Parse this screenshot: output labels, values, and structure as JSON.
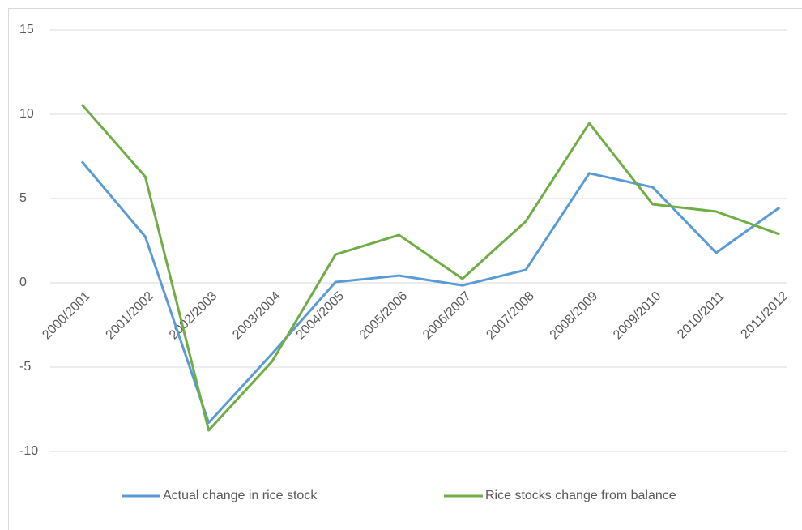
{
  "chart_data": {
    "type": "line",
    "categories": [
      "2000/2001",
      "2001/2002",
      "2002/2003",
      "2003/2004",
      "2004/2005",
      "2005/2006",
      "2006/2007",
      "2007/2008",
      "2008/2009",
      "2009/2010",
      "2010/2011",
      "2011/2012"
    ],
    "series": [
      {
        "name": "Actual change in rice stock",
        "color": "#5b9bd5",
        "values": [
          7.2,
          2.74,
          -8.3,
          -4.2,
          0.05,
          0.43,
          -0.15,
          0.77,
          6.5,
          5.67,
          1.78,
          4.47
        ]
      },
      {
        "name": "Rice stocks change from balance",
        "color": "#70ad47",
        "values": [
          10.58,
          6.3,
          -8.75,
          -4.66,
          1.68,
          2.84,
          0.24,
          3.65,
          9.47,
          4.66,
          4.23,
          2.88
        ]
      }
    ],
    "ylim": [
      -10,
      15
    ],
    "yticks": [
      -10,
      -5,
      0,
      5,
      10,
      15
    ],
    "grid": true
  }
}
